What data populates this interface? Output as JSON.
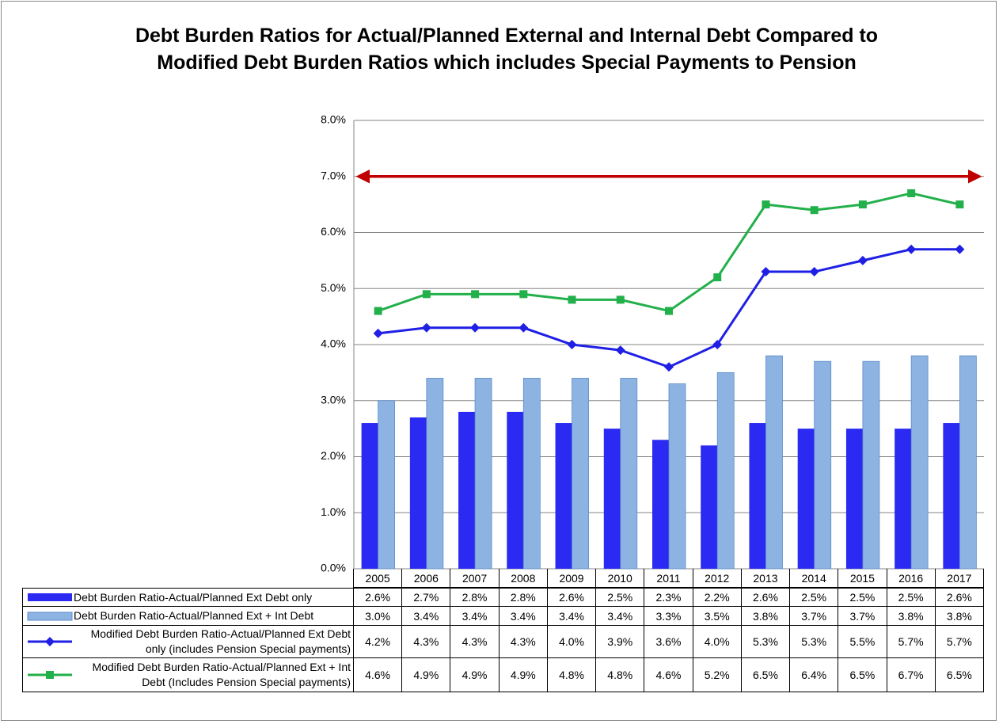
{
  "chart_data": {
    "type": "combo",
    "title": "Debt Burden Ratios for Actual/Planned External and Internal Debt Compared to Modified Debt Burden Ratios which includes Special Payments to Pension",
    "categories": [
      "2005",
      "2006",
      "2007",
      "2008",
      "2009",
      "2010",
      "2011",
      "2012",
      "2013",
      "2014",
      "2015",
      "2016",
      "2017"
    ],
    "ylim": [
      0,
      8
    ],
    "yticks": [
      {
        "value": 0,
        "label": "0.0%"
      },
      {
        "value": 1,
        "label": "1.0%"
      },
      {
        "value": 2,
        "label": "2.0%"
      },
      {
        "value": 3,
        "label": "3.0%"
      },
      {
        "value": 4,
        "label": "4.0%"
      },
      {
        "value": 5,
        "label": "5.0%"
      },
      {
        "value": 6,
        "label": "6.0%"
      },
      {
        "value": 7,
        "label": "7.0%"
      },
      {
        "value": 8,
        "label": "8.0%"
      }
    ],
    "grid": true,
    "reference_line": {
      "value": 7.0,
      "color": "#c00000"
    },
    "series": [
      {
        "name": "Debt Burden Ratio-Actual/Planned Ext Debt only",
        "type": "bar",
        "color": "#2a2af2",
        "values": [
          2.6,
          2.7,
          2.8,
          2.8,
          2.6,
          2.5,
          2.3,
          2.2,
          2.6,
          2.5,
          2.5,
          2.5,
          2.6
        ],
        "value_labels": [
          "2.6%",
          "2.7%",
          "2.8%",
          "2.8%",
          "2.6%",
          "2.5%",
          "2.3%",
          "2.2%",
          "2.6%",
          "2.5%",
          "2.5%",
          "2.5%",
          "2.6%"
        ]
      },
      {
        "name": "Debt Burden Ratio-Actual/Planned Ext + Int Debt",
        "type": "bar",
        "color": "#8db3e2",
        "values": [
          3.0,
          3.4,
          3.4,
          3.4,
          3.4,
          3.4,
          3.3,
          3.5,
          3.8,
          3.7,
          3.7,
          3.8,
          3.8
        ],
        "value_labels": [
          "3.0%",
          "3.4%",
          "3.4%",
          "3.4%",
          "3.4%",
          "3.4%",
          "3.3%",
          "3.5%",
          "3.8%",
          "3.7%",
          "3.7%",
          "3.8%",
          "3.8%"
        ]
      },
      {
        "name": "Modified Debt Burden Ratio-Actual/Planned Ext Debt only (includes Pension Special payments)",
        "type": "line",
        "marker": "diamond",
        "color": "#1f1fe6",
        "values": [
          4.2,
          4.3,
          4.3,
          4.3,
          4.0,
          3.9,
          3.6,
          4.0,
          5.3,
          5.3,
          5.5,
          5.7,
          5.7
        ],
        "value_labels": [
          "4.2%",
          "4.3%",
          "4.3%",
          "4.3%",
          "4.0%",
          "3.9%",
          "3.6%",
          "4.0%",
          "5.3%",
          "5.3%",
          "5.5%",
          "5.7%",
          "5.7%"
        ]
      },
      {
        "name": "Modified Debt Burden Ratio-Actual/Planned Ext + Int Debt (Includes Pension Special payments)",
        "type": "line",
        "marker": "square",
        "color": "#22b04b",
        "values": [
          4.6,
          4.9,
          4.9,
          4.9,
          4.8,
          4.8,
          4.6,
          5.2,
          6.5,
          6.4,
          6.5,
          6.7,
          6.5
        ],
        "value_labels": [
          "4.6%",
          "4.9%",
          "4.9%",
          "4.9%",
          "4.8%",
          "4.8%",
          "4.6%",
          "5.2%",
          "6.5%",
          "6.4%",
          "6.5%",
          "6.7%",
          "6.5%"
        ]
      }
    ]
  }
}
